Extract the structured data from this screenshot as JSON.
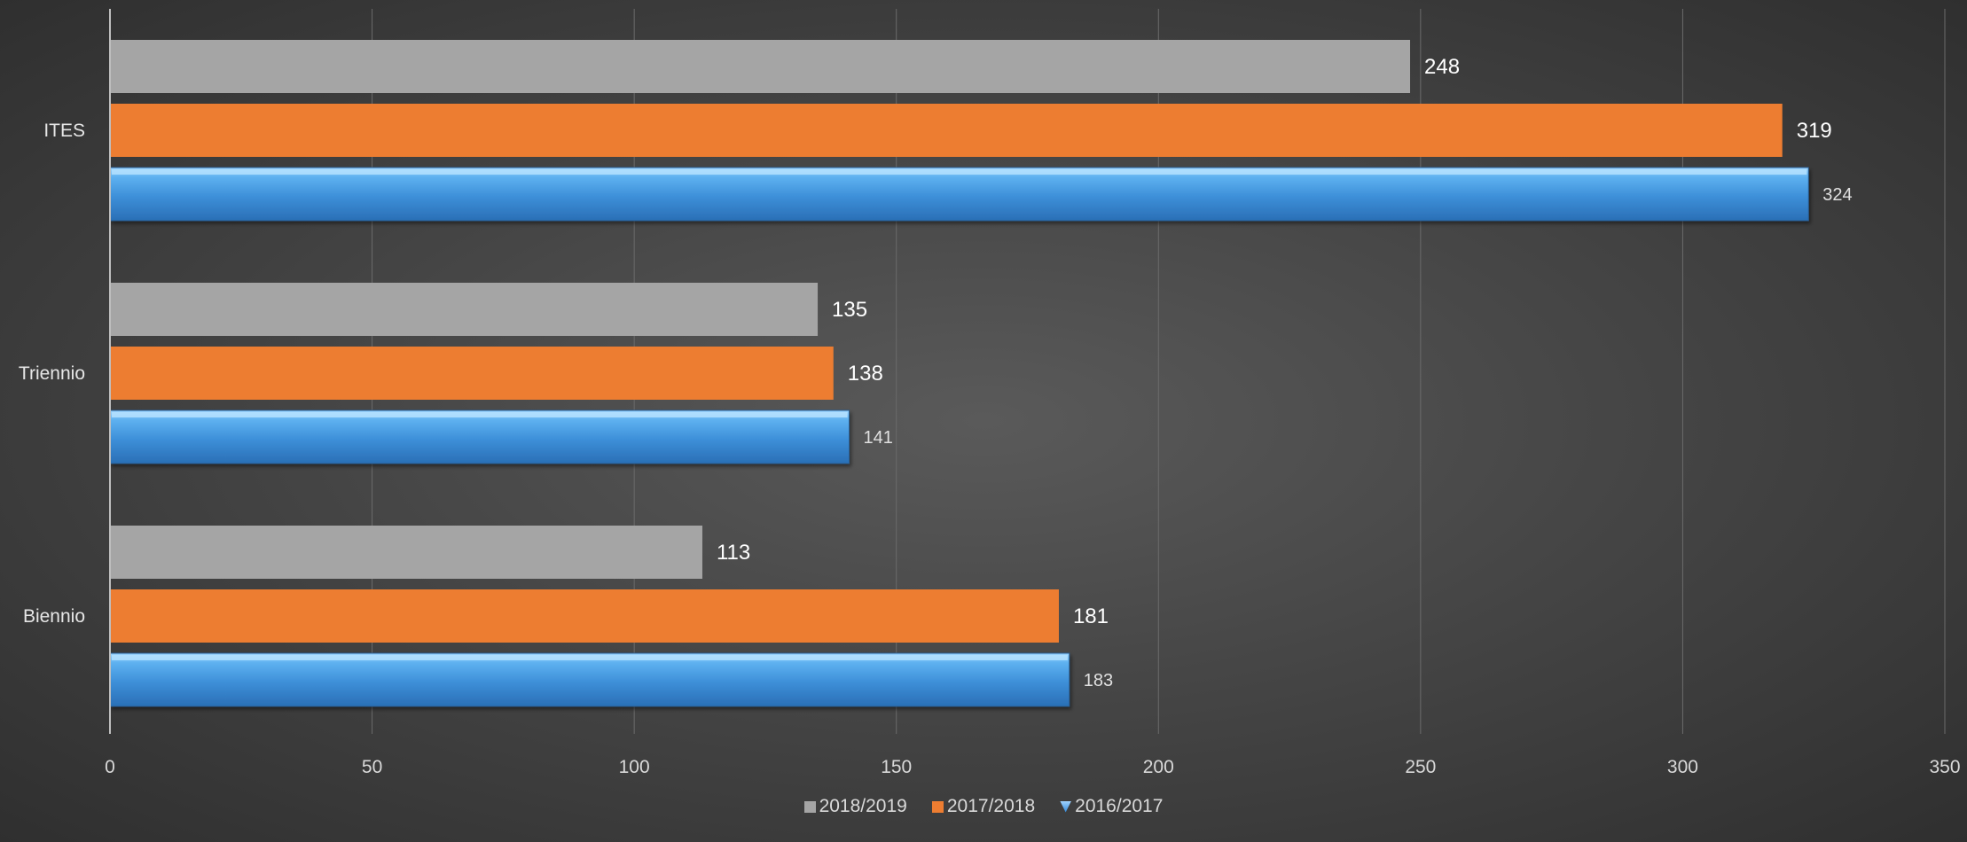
{
  "chart_data": {
    "type": "bar",
    "orientation": "horizontal",
    "categories": [
      "ITES",
      "Triennio",
      "Biennio"
    ],
    "series": [
      {
        "name": "2018/2019",
        "values": [
          248,
          135,
          113
        ],
        "color": "#a5a5a5"
      },
      {
        "name": "2017/2018",
        "values": [
          319,
          138,
          181
        ],
        "color": "#ed7d31"
      },
      {
        "name": "2016/2017",
        "values": [
          324,
          141,
          183
        ],
        "color": "#3f8fd6"
      }
    ],
    "xlim": [
      0,
      350
    ],
    "xticks": [
      "0",
      "50",
      "100",
      "150",
      "200",
      "250",
      "300",
      "350"
    ],
    "grid": true,
    "legend": "bottom-center",
    "title": "",
    "xlabel": "",
    "ylabel": ""
  }
}
